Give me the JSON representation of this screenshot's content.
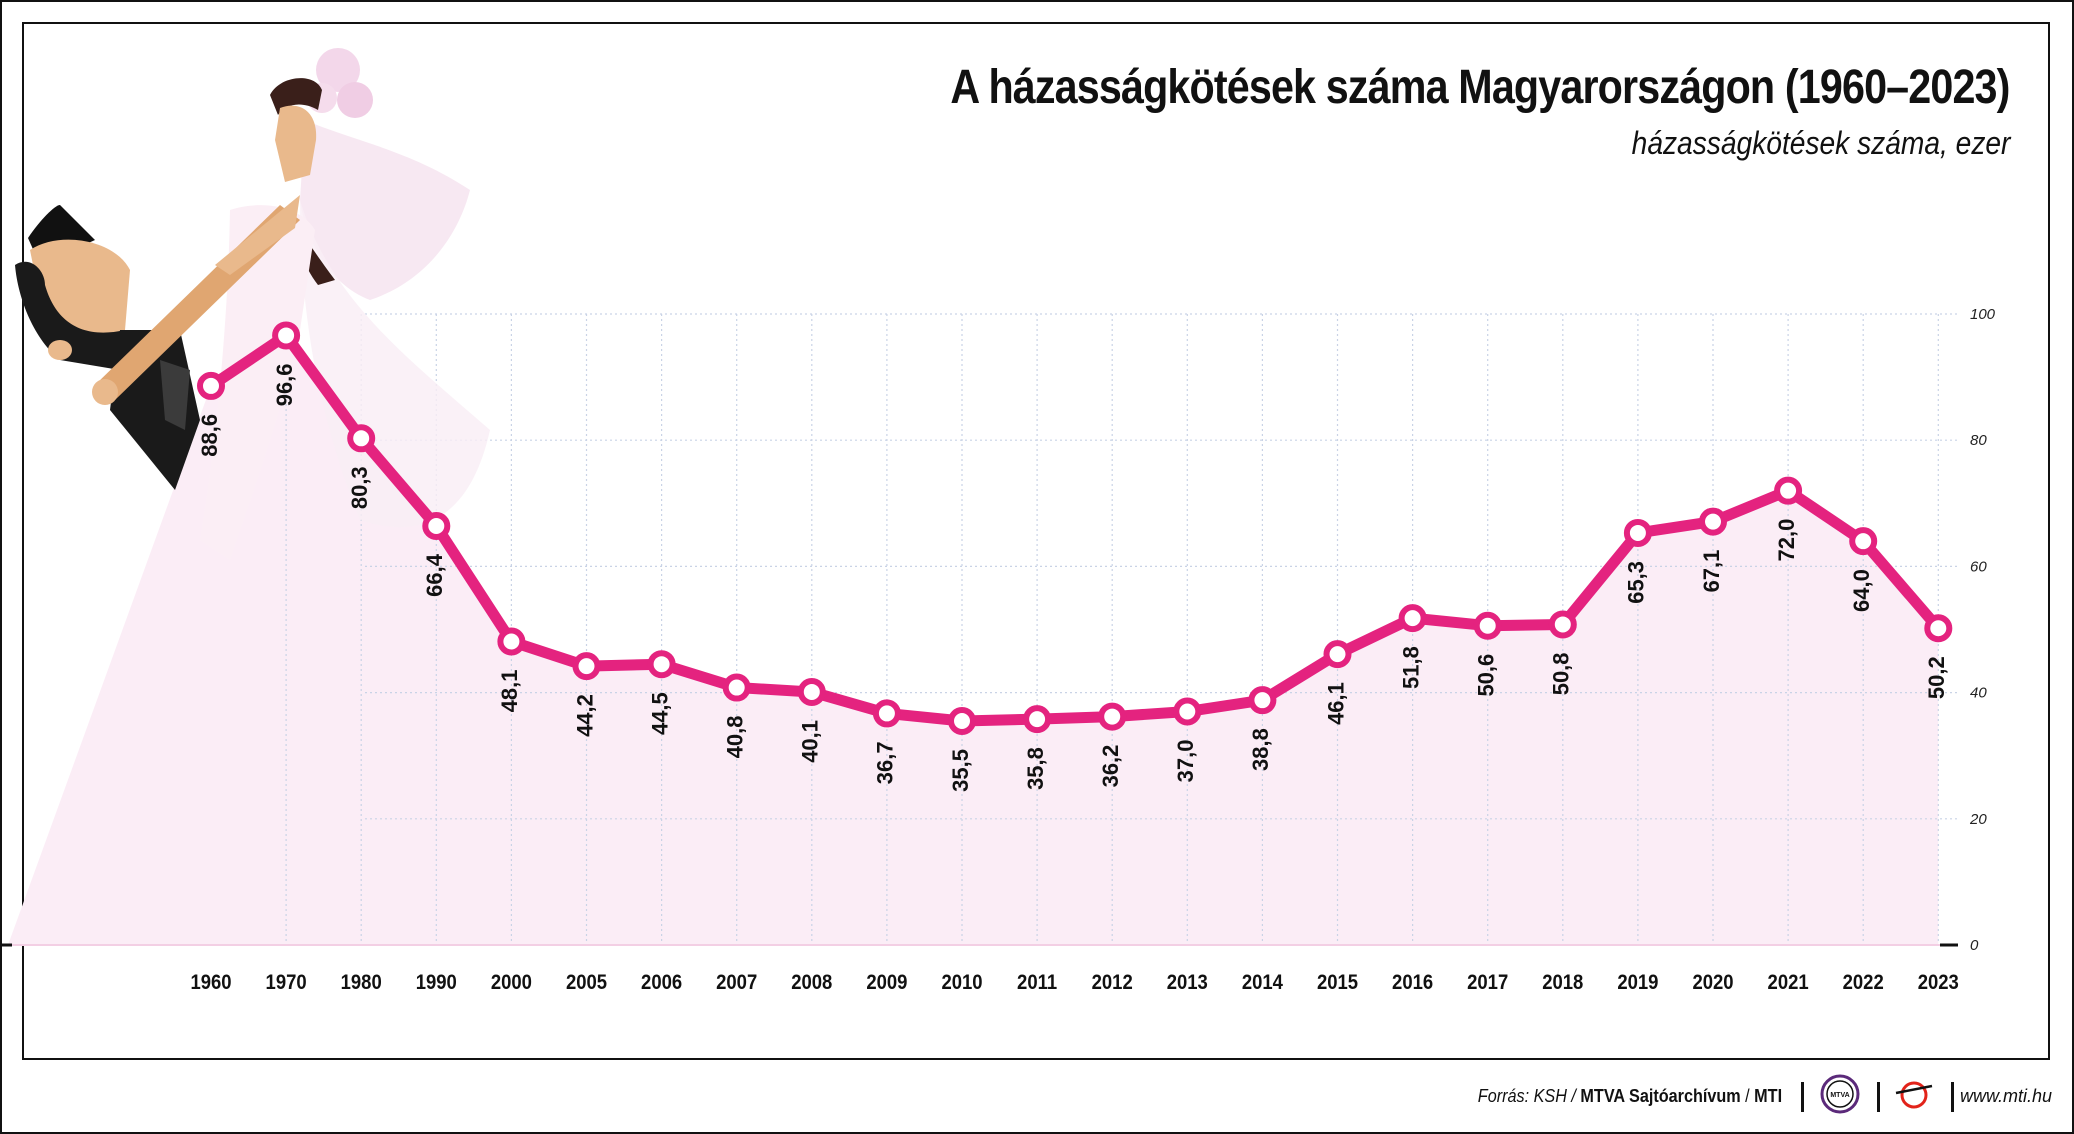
{
  "header": {
    "title": "A házasságkötések száma Magyarországon (1960–2023)",
    "subtitle": "házasságkötések száma, ezer"
  },
  "footer": {
    "source_prefix": "Forrás: KSH / ",
    "source_archive": "MTVA Sajtóarchívum",
    "source_sep": " / ",
    "source_agency": "MTI",
    "mtva_logo_text": "MTVA",
    "website": "www.mti.hu"
  },
  "colors": {
    "line": "#e4237f",
    "area": "#fbedf6",
    "grid": "#c9d3e6",
    "text": "#111111"
  },
  "chart_data": {
    "type": "line",
    "title": "A házasságkötések száma Magyarországon (1960–2023)",
    "subtitle": "házasságkötések száma, ezer",
    "categories": [
      "1960",
      "1970",
      "1980",
      "1990",
      "2000",
      "2005",
      "2006",
      "2007",
      "2008",
      "2009",
      "2010",
      "2011",
      "2012",
      "2013",
      "2014",
      "2015",
      "2016",
      "2017",
      "2018",
      "2019",
      "2020",
      "2021",
      "2022",
      "2023"
    ],
    "values": [
      88.6,
      96.6,
      80.3,
      66.4,
      48.1,
      44.2,
      44.5,
      40.8,
      40.1,
      36.7,
      35.5,
      35.8,
      36.2,
      37.0,
      38.8,
      46.1,
      51.8,
      50.6,
      50.8,
      65.3,
      67.1,
      72.0,
      64.0,
      50.2
    ],
    "value_labels": [
      "88,6",
      "96,6",
      "80,3",
      "66,4",
      "48,1",
      "44,2",
      "44,5",
      "40,8",
      "40,1",
      "36,7",
      "35,5",
      "35,8",
      "36,2",
      "37,0",
      "38,8",
      "46,1",
      "51,8",
      "50,6",
      "50,8",
      "65,3",
      "67,1",
      "72,0",
      "64,0",
      "50,2"
    ],
    "ylim": [
      0,
      100
    ],
    "yticks": [
      0,
      20,
      40,
      60,
      80,
      100
    ],
    "grid": true,
    "axis_side": "right",
    "illustration": "bride-and-groom"
  }
}
